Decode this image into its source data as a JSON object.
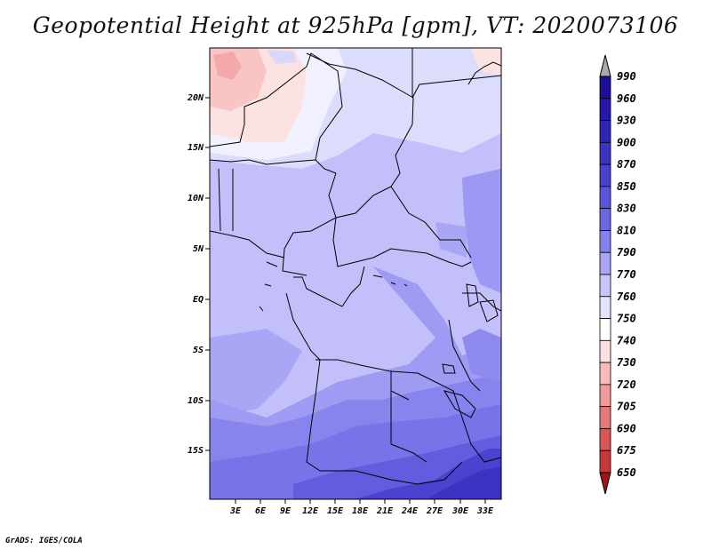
{
  "title": "Geopotential Height at 925hPa [gpm], VT: 2020073106",
  "credit": "GrADS: IGES/COLA",
  "map": {
    "lat_labels": [
      "20N",
      "15N",
      "10N",
      "5N",
      "EQ",
      "5S",
      "10S",
      "15S"
    ],
    "lon_labels": [
      "3E",
      "6E",
      "9E",
      "12E",
      "15E",
      "18E",
      "21E",
      "24E",
      "27E",
      "30E",
      "33E"
    ]
  },
  "colorbar": {
    "levels": [
      "990",
      "960",
      "930",
      "900",
      "870",
      "850",
      "830",
      "810",
      "790",
      "770",
      "760",
      "750",
      "740",
      "730",
      "720",
      "705",
      "690",
      "675",
      "650"
    ],
    "colors": [
      "#1a0f96",
      "#2617a8",
      "#3125b6",
      "#3d33c3",
      "#4a42cf",
      "#5a54d9",
      "#6c67e3",
      "#8480ee",
      "#aaa6f6",
      "#c9c6fb",
      "#e3e3fe",
      "#ffffff",
      "#fde0e0",
      "#f8bcbc",
      "#f09a9a",
      "#e57878",
      "#d85656",
      "#c83838",
      "#b52222",
      "#a01414"
    ],
    "top_arrow_color": "#a8a8a8"
  }
}
